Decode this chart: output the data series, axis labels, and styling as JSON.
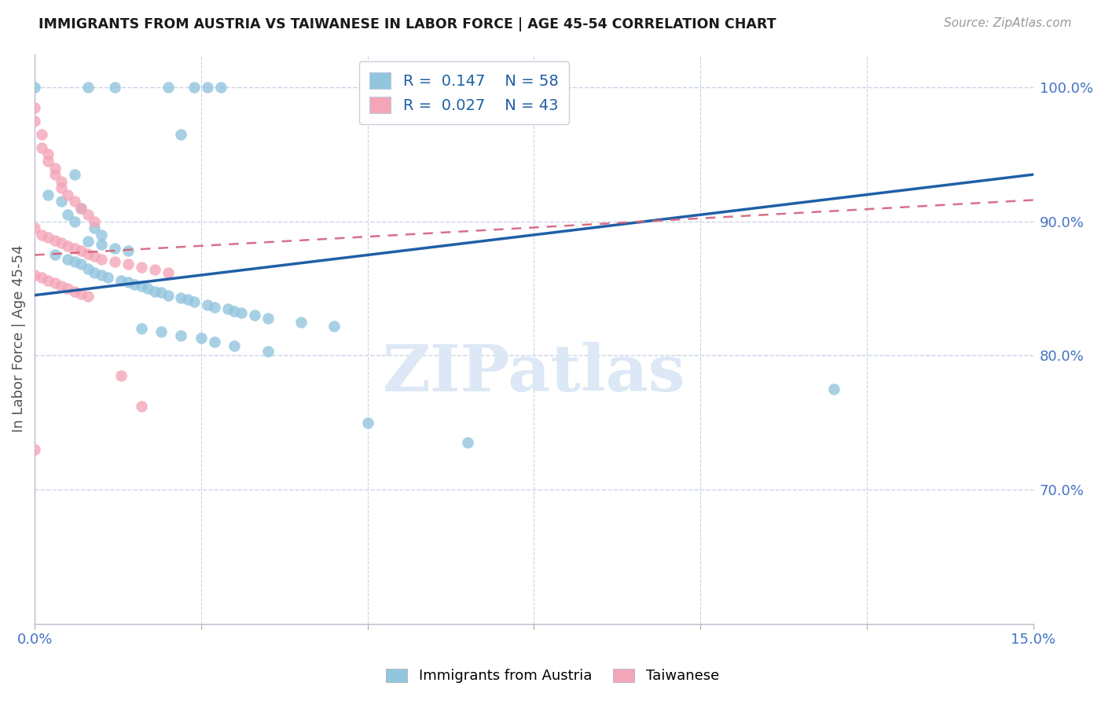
{
  "title": "IMMIGRANTS FROM AUSTRIA VS TAIWANESE IN LABOR FORCE | AGE 45-54 CORRELATION CHART",
  "source": "Source: ZipAtlas.com",
  "ylabel": "In Labor Force | Age 45-54",
  "xlim": [
    0.0,
    0.15
  ],
  "ylim": [
    0.6,
    1.025
  ],
  "xtick_pos": [
    0.0,
    0.025,
    0.05,
    0.075,
    0.1,
    0.125,
    0.15
  ],
  "xtick_labels": [
    "0.0%",
    "",
    "",
    "",
    "",
    "",
    "15.0%"
  ],
  "ytick_positions_right": [
    1.0,
    0.9,
    0.8,
    0.7
  ],
  "ytick_labels_right": [
    "100.0%",
    "90.0%",
    "80.0%",
    "70.0%"
  ],
  "legend_R_blue": "0.147",
  "legend_N_blue": "58",
  "legend_R_pink": "0.027",
  "legend_N_pink": "43",
  "blue_scatter": [
    [
      0.0,
      1.0
    ],
    [
      0.008,
      1.0
    ],
    [
      0.012,
      1.0
    ],
    [
      0.02,
      1.0
    ],
    [
      0.024,
      1.0
    ],
    [
      0.026,
      1.0
    ],
    [
      0.028,
      1.0
    ],
    [
      0.022,
      0.965
    ],
    [
      0.006,
      0.935
    ],
    [
      0.002,
      0.92
    ],
    [
      0.004,
      0.915
    ],
    [
      0.007,
      0.91
    ],
    [
      0.005,
      0.905
    ],
    [
      0.006,
      0.9
    ],
    [
      0.009,
      0.895
    ],
    [
      0.01,
      0.89
    ],
    [
      0.008,
      0.885
    ],
    [
      0.01,
      0.883
    ],
    [
      0.012,
      0.88
    ],
    [
      0.014,
      0.878
    ],
    [
      0.003,
      0.875
    ],
    [
      0.005,
      0.872
    ],
    [
      0.006,
      0.87
    ],
    [
      0.007,
      0.868
    ],
    [
      0.008,
      0.865
    ],
    [
      0.009,
      0.862
    ],
    [
      0.01,
      0.86
    ],
    [
      0.011,
      0.858
    ],
    [
      0.013,
      0.856
    ],
    [
      0.014,
      0.855
    ],
    [
      0.015,
      0.853
    ],
    [
      0.016,
      0.852
    ],
    [
      0.017,
      0.85
    ],
    [
      0.018,
      0.848
    ],
    [
      0.019,
      0.847
    ],
    [
      0.02,
      0.845
    ],
    [
      0.022,
      0.843
    ],
    [
      0.023,
      0.842
    ],
    [
      0.024,
      0.84
    ],
    [
      0.026,
      0.838
    ],
    [
      0.027,
      0.836
    ],
    [
      0.029,
      0.835
    ],
    [
      0.03,
      0.833
    ],
    [
      0.031,
      0.832
    ],
    [
      0.033,
      0.83
    ],
    [
      0.035,
      0.828
    ],
    [
      0.04,
      0.825
    ],
    [
      0.045,
      0.822
    ],
    [
      0.016,
      0.82
    ],
    [
      0.019,
      0.818
    ],
    [
      0.022,
      0.815
    ],
    [
      0.025,
      0.813
    ],
    [
      0.027,
      0.81
    ],
    [
      0.03,
      0.807
    ],
    [
      0.035,
      0.803
    ],
    [
      0.05,
      0.75
    ],
    [
      0.065,
      0.735
    ],
    [
      0.12,
      0.775
    ]
  ],
  "pink_scatter": [
    [
      0.0,
      0.985
    ],
    [
      0.0,
      0.975
    ],
    [
      0.001,
      0.965
    ],
    [
      0.001,
      0.955
    ],
    [
      0.002,
      0.95
    ],
    [
      0.002,
      0.945
    ],
    [
      0.003,
      0.94
    ],
    [
      0.003,
      0.935
    ],
    [
      0.004,
      0.93
    ],
    [
      0.004,
      0.925
    ],
    [
      0.005,
      0.92
    ],
    [
      0.006,
      0.915
    ],
    [
      0.007,
      0.91
    ],
    [
      0.008,
      0.905
    ],
    [
      0.009,
      0.9
    ],
    [
      0.0,
      0.895
    ],
    [
      0.001,
      0.89
    ],
    [
      0.002,
      0.888
    ],
    [
      0.003,
      0.886
    ],
    [
      0.004,
      0.884
    ],
    [
      0.005,
      0.882
    ],
    [
      0.006,
      0.88
    ],
    [
      0.007,
      0.878
    ],
    [
      0.008,
      0.876
    ],
    [
      0.009,
      0.874
    ],
    [
      0.01,
      0.872
    ],
    [
      0.012,
      0.87
    ],
    [
      0.014,
      0.868
    ],
    [
      0.016,
      0.866
    ],
    [
      0.018,
      0.864
    ],
    [
      0.02,
      0.862
    ],
    [
      0.0,
      0.86
    ],
    [
      0.001,
      0.858
    ],
    [
      0.002,
      0.856
    ],
    [
      0.003,
      0.854
    ],
    [
      0.004,
      0.852
    ],
    [
      0.005,
      0.85
    ],
    [
      0.006,
      0.848
    ],
    [
      0.007,
      0.846
    ],
    [
      0.008,
      0.844
    ],
    [
      0.0,
      0.73
    ],
    [
      0.013,
      0.785
    ],
    [
      0.016,
      0.762
    ]
  ],
  "blue_color": "#92c5de",
  "pink_color": "#f4a6b8",
  "blue_line_color": "#1f5fa6",
  "pink_line_color": "#d4607a",
  "grid_color": "#c8d4e8",
  "watermark_text": "ZIPatlas",
  "watermark_color": "#dce8f5"
}
